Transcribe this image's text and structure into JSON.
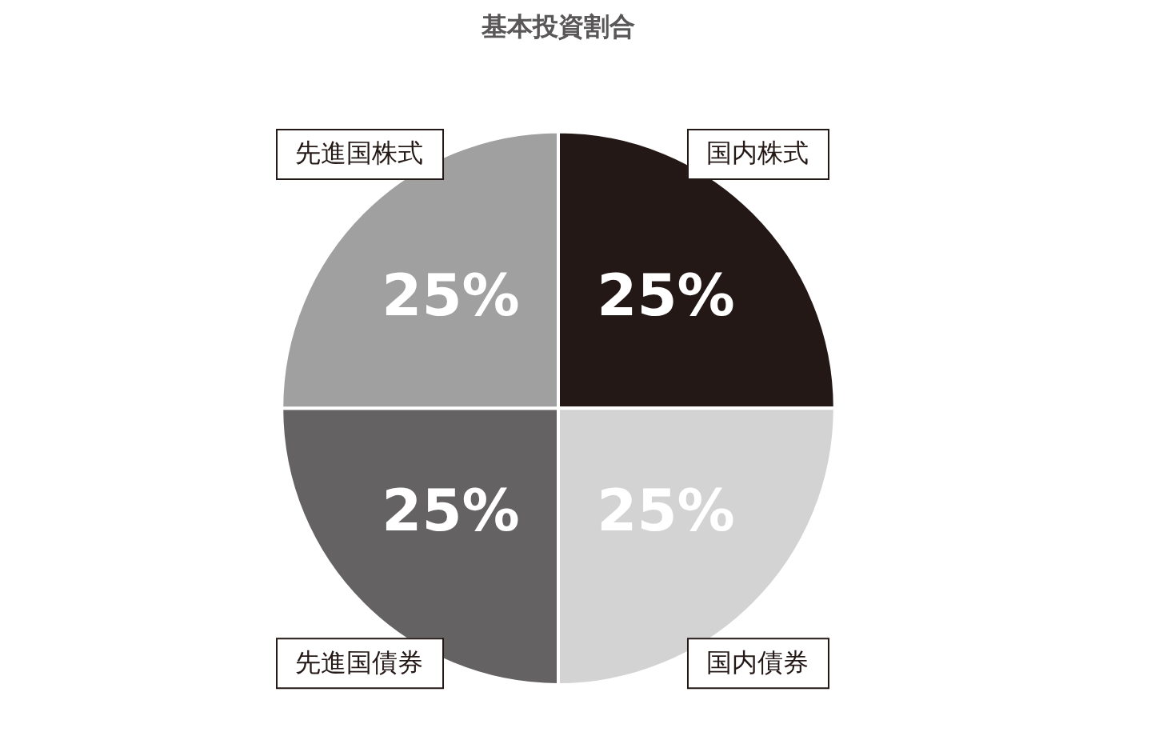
{
  "chart_data": {
    "type": "pie",
    "title": "基本投資割合",
    "categories": [
      "国内株式",
      "国内債券",
      "先進国債券",
      "先進国株式"
    ],
    "values": [
      25,
      25,
      25,
      25
    ],
    "colors": [
      "#231815",
      "#d3d3d3",
      "#656263",
      "#9fa09f"
    ],
    "value_labels": [
      "25%",
      "25%",
      "25%",
      "25%"
    ],
    "legend": false
  }
}
